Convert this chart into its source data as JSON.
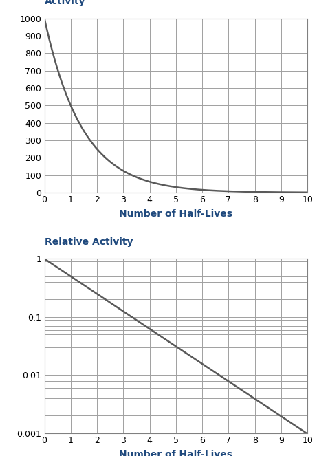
{
  "title1": "Activity",
  "title2": "Relative Activity",
  "xlabel": "Number of Half-Lives",
  "x_min": 0,
  "x_max": 10,
  "x_ticks": [
    0,
    1,
    2,
    3,
    4,
    5,
    6,
    7,
    8,
    9,
    10
  ],
  "y1_min": 0,
  "y1_max": 1000,
  "y1_ticks": [
    0,
    100,
    200,
    300,
    400,
    500,
    600,
    700,
    800,
    900,
    1000
  ],
  "y2_min": 0.001,
  "y2_max": 1,
  "initial_activity": 1000,
  "line_color": "#595959",
  "line_width": 1.8,
  "grid_color": "#a0a0a0",
  "bg_color": "#ffffff",
  "label_color": "#1f497d",
  "tick_color": "#000000",
  "title_fontsize": 10,
  "xlabel_fontsize": 10,
  "tick_fontsize": 9,
  "spine_color": "#808080"
}
